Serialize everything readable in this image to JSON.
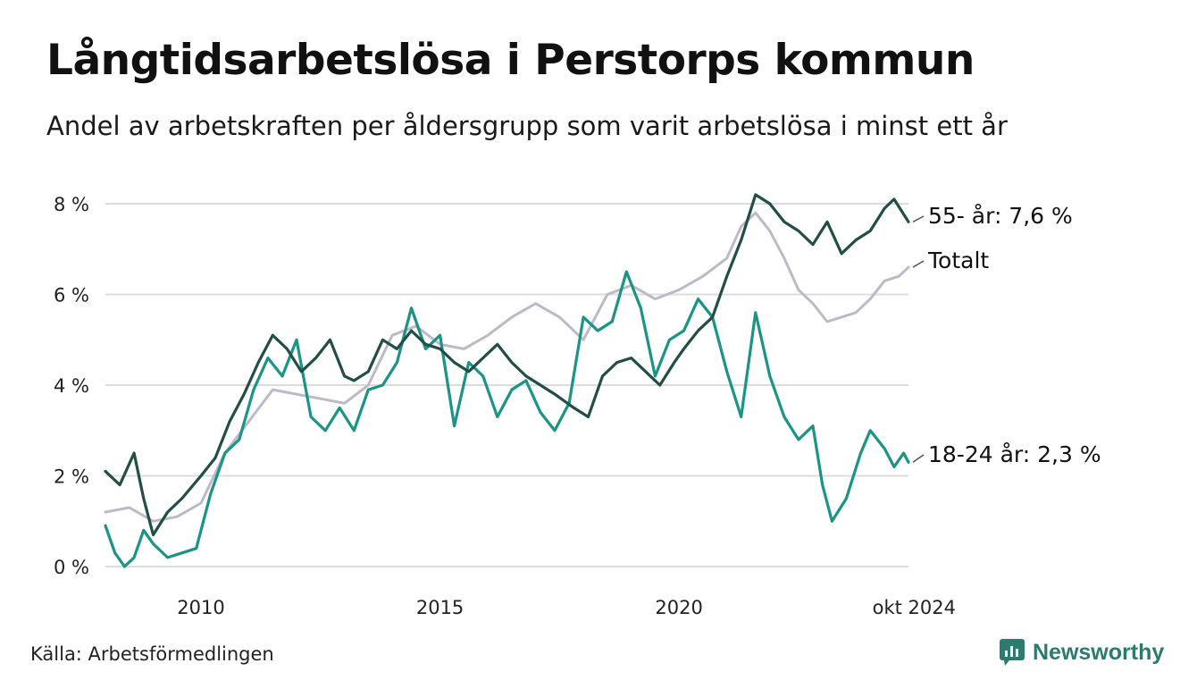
{
  "title": "Långtidsarbetslösa i Perstorps kommun",
  "subtitle": "Andel av arbetskraften per åldersgrupp som varit arbetslösa i minst ett år",
  "source": "Källa: Arbetsförmedlingen",
  "brand": "Newsworthy",
  "chart_data": {
    "type": "line",
    "y_ticks": [
      "0 %",
      "2 %",
      "4 %",
      "6 %",
      "8 %"
    ],
    "y_tick_values": [
      0,
      2,
      4,
      6,
      8
    ],
    "x_ticks": [
      "2010",
      "2015",
      "2020",
      "okt 2024"
    ],
    "x_tick_values": [
      2010.0,
      2015.0,
      2020.0,
      2024.8
    ],
    "xlim": [
      2008.0,
      2024.8
    ],
    "ylim": [
      0,
      8.6
    ],
    "grid": true,
    "colors": {
      "age55": "#234d47",
      "total": "#bdbac8",
      "age1824": "#1a9484"
    },
    "series": [
      {
        "key": "age55",
        "label": "55- år: 7,6 %",
        "color": "#234d47",
        "x": [
          2008.0,
          2008.3,
          2008.6,
          2008.8,
          2009.0,
          2009.3,
          2009.6,
          2010.0,
          2010.3,
          2010.6,
          2010.9,
          2011.2,
          2011.5,
          2011.8,
          2012.1,
          2012.4,
          2012.7,
          2013.0,
          2013.2,
          2013.5,
          2013.8,
          2014.1,
          2014.4,
          2014.7,
          2015.0,
          2015.3,
          2015.6,
          2015.9,
          2016.2,
          2016.5,
          2016.8,
          2017.1,
          2017.4,
          2017.8,
          2018.1,
          2018.4,
          2018.7,
          2019.0,
          2019.3,
          2019.6,
          2019.9,
          2020.1,
          2020.4,
          2020.7,
          2021.0,
          2021.3,
          2021.6,
          2021.9,
          2022.2,
          2022.5,
          2022.8,
          2023.1,
          2023.4,
          2023.7,
          2024.0,
          2024.3,
          2024.5,
          2024.8
        ],
        "y": [
          2.1,
          1.8,
          2.5,
          1.5,
          0.7,
          1.2,
          1.5,
          2.0,
          2.4,
          3.2,
          3.8,
          4.5,
          5.1,
          4.8,
          4.3,
          4.6,
          5.0,
          4.2,
          4.1,
          4.3,
          5.0,
          4.8,
          5.2,
          4.9,
          4.8,
          4.5,
          4.3,
          4.6,
          4.9,
          4.5,
          4.2,
          4.0,
          3.8,
          3.5,
          3.3,
          4.2,
          4.5,
          4.6,
          4.3,
          4.0,
          4.5,
          4.8,
          5.2,
          5.5,
          6.4,
          7.2,
          8.2,
          8.0,
          7.6,
          7.4,
          7.1,
          7.6,
          6.9,
          7.2,
          7.4,
          7.9,
          8.1,
          7.6
        ]
      },
      {
        "key": "total",
        "label": "Totalt",
        "color": "#bdbac8",
        "x": [
          2008.0,
          2008.5,
          2009.0,
          2009.5,
          2010.0,
          2010.5,
          2011.0,
          2011.5,
          2012.0,
          2012.5,
          2013.0,
          2013.5,
          2014.0,
          2014.5,
          2015.0,
          2015.5,
          2016.0,
          2016.5,
          2017.0,
          2017.5,
          2018.0,
          2018.5,
          2019.0,
          2019.5,
          2020.0,
          2020.5,
          2021.0,
          2021.3,
          2021.6,
          2021.9,
          2022.2,
          2022.5,
          2022.8,
          2023.1,
          2023.4,
          2023.7,
          2024.0,
          2024.3,
          2024.6,
          2024.8
        ],
        "y": [
          1.2,
          1.3,
          1.0,
          1.1,
          1.4,
          2.5,
          3.2,
          3.9,
          3.8,
          3.7,
          3.6,
          4.0,
          5.1,
          5.3,
          4.9,
          4.8,
          5.1,
          5.5,
          5.8,
          5.5,
          5.0,
          6.0,
          6.2,
          5.9,
          6.1,
          6.4,
          6.8,
          7.5,
          7.8,
          7.4,
          6.8,
          6.1,
          5.8,
          5.4,
          5.5,
          5.6,
          5.9,
          6.3,
          6.4,
          6.6
        ]
      },
      {
        "key": "age1824",
        "label": "18-24 år: 2,3 %",
        "color": "#1a9484",
        "x": [
          2008.0,
          2008.2,
          2008.4,
          2008.6,
          2008.8,
          2009.0,
          2009.3,
          2009.6,
          2009.9,
          2010.2,
          2010.5,
          2010.8,
          2011.1,
          2011.4,
          2011.7,
          2012.0,
          2012.3,
          2012.6,
          2012.9,
          2013.2,
          2013.5,
          2013.8,
          2014.1,
          2014.4,
          2014.7,
          2015.0,
          2015.3,
          2015.6,
          2015.9,
          2016.2,
          2016.5,
          2016.8,
          2017.1,
          2017.4,
          2017.7,
          2018.0,
          2018.3,
          2018.6,
          2018.9,
          2019.2,
          2019.5,
          2019.8,
          2020.1,
          2020.4,
          2020.7,
          2021.0,
          2021.3,
          2021.6,
          2021.9,
          2022.2,
          2022.5,
          2022.8,
          2023.0,
          2023.2,
          2023.5,
          2023.8,
          2024.0,
          2024.3,
          2024.5,
          2024.7,
          2024.8
        ],
        "y": [
          0.9,
          0.3,
          0.0,
          0.2,
          0.8,
          0.5,
          0.2,
          0.3,
          0.4,
          1.6,
          2.5,
          2.8,
          3.9,
          4.6,
          4.2,
          5.0,
          3.3,
          3.0,
          3.5,
          3.0,
          3.9,
          4.0,
          4.5,
          5.7,
          4.8,
          5.1,
          3.1,
          4.5,
          4.2,
          3.3,
          3.9,
          4.1,
          3.4,
          3.0,
          3.6,
          5.5,
          5.2,
          5.4,
          6.5,
          5.7,
          4.2,
          5.0,
          5.2,
          5.9,
          5.5,
          4.3,
          3.3,
          5.6,
          4.2,
          3.3,
          2.8,
          3.1,
          1.8,
          1.0,
          1.5,
          2.5,
          3.0,
          2.6,
          2.2,
          2.5,
          2.3
        ]
      }
    ]
  }
}
